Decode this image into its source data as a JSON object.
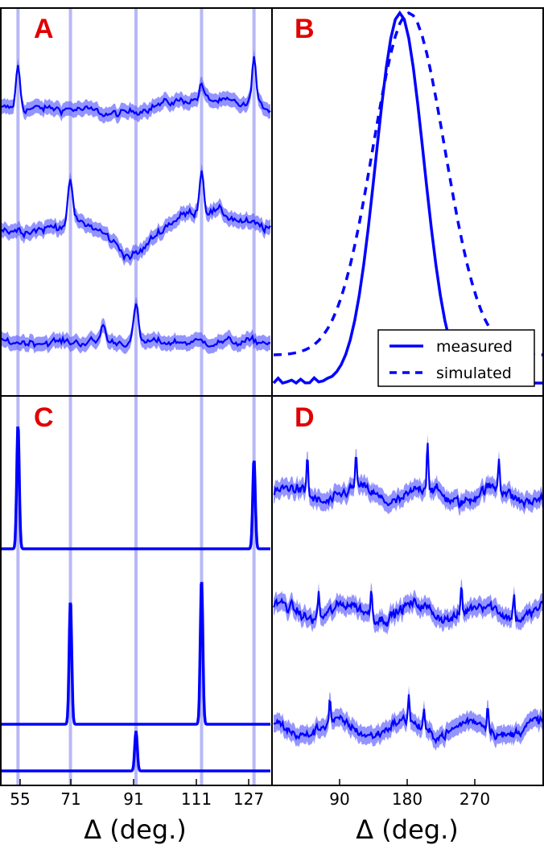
{
  "colors": {
    "line": "#0000ff",
    "band": "#7070ff",
    "guide": "#b8b8f8",
    "letter": "#e00000",
    "frame": "#000000"
  },
  "chart_data": [
    {
      "panel": "A",
      "type": "line",
      "description": "three noisy traces with shaded uncertainty bands",
      "xlim": [
        50,
        132
      ],
      "xticks": [
        55,
        71,
        91,
        111,
        127
      ],
      "guides": [
        55,
        71,
        91,
        111,
        127
      ],
      "series": [
        {
          "baseline": 0.0,
          "peaks": [
            [
              55,
              0.55
            ],
            [
              127,
              0.65
            ],
            [
              111,
              0.2
            ]
          ],
          "trend": "bump-right",
          "noise": 0.1
        },
        {
          "baseline": 0.0,
          "peaks": [
            [
              71,
              0.55
            ],
            [
              111,
              0.55
            ]
          ],
          "trend": "dip-middle",
          "noise": 0.12
        },
        {
          "baseline": 0.0,
          "peaks": [
            [
              91,
              0.5
            ],
            [
              81,
              0.25
            ]
          ],
          "trend": "flat",
          "noise": 0.1
        }
      ]
    },
    {
      "panel": "B",
      "type": "line",
      "description": "measured vs simulated response around 180 deg",
      "legend": [
        "measured",
        "simulated"
      ],
      "legend_position": "bottom-right",
      "series": [
        {
          "name": "measured",
          "style": "solid",
          "center": 172,
          "width": 30,
          "floor": -0.06
        },
        {
          "name": "simulated",
          "style": "dashed",
          "center": 180,
          "width": 45,
          "floor": 0.02
        }
      ]
    },
    {
      "panel": "C",
      "type": "line",
      "description": "three clean traces with sharp peaks",
      "xlim": [
        50,
        132
      ],
      "xticks": [
        55,
        71,
        91,
        111,
        127
      ],
      "guides": [
        55,
        71,
        91,
        111,
        127
      ],
      "series": [
        {
          "peaks": [
            [
              55,
              1.0
            ],
            [
              127,
              0.72
            ]
          ]
        },
        {
          "peaks": [
            [
              71,
              1.0
            ],
            [
              111,
              1.17
            ]
          ]
        },
        {
          "peaks": [
            [
              91,
              0.32
            ]
          ]
        }
      ]
    },
    {
      "panel": "D",
      "type": "line",
      "description": "three noisy traces over the full angle range",
      "xlim": [
        0,
        360
      ],
      "xticks": [
        90,
        180,
        270
      ],
      "series": [
        {
          "peaks": [
            [
              45,
              0.6
            ],
            [
              110,
              0.5
            ],
            [
              205,
              0.75
            ],
            [
              300,
              0.5
            ]
          ],
          "noise": 0.14
        },
        {
          "peaks": [
            [
              60,
              0.4
            ],
            [
              130,
              0.45
            ],
            [
              250,
              0.45
            ],
            [
              320,
              0.4
            ]
          ],
          "noise": 0.14
        },
        {
          "peaks": [
            [
              75,
              0.35
            ],
            [
              180,
              0.45
            ],
            [
              200,
              0.3
            ],
            [
              285,
              0.35
            ]
          ],
          "noise": 0.12
        }
      ]
    }
  ],
  "labels": {
    "panel_a": "A",
    "panel_b": "B",
    "panel_c": "C",
    "panel_d": "D",
    "xlabel_left": "Δ (deg.)",
    "xlabel_right": "Δ (deg.)",
    "tick_55": "55",
    "tick_71": "71",
    "tick_91": "91",
    "tick_111": "111",
    "tick_127": "127",
    "tick_90": "90",
    "tick_180": "180",
    "tick_270": "270",
    "legend_measured": "measured",
    "legend_simulated": "simulated"
  }
}
